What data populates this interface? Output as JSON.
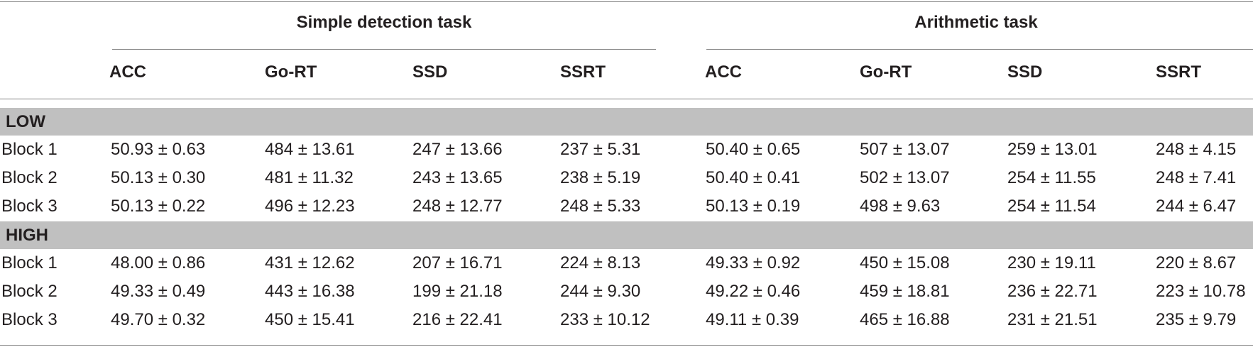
{
  "groups": [
    {
      "title": "Simple detection task",
      "columns": [
        "ACC",
        "Go-RT",
        "SSD",
        "SSRT"
      ]
    },
    {
      "title": "Arithmetic task",
      "columns": [
        "ACC",
        "Go-RT",
        "SSD",
        "SSRT"
      ]
    }
  ],
  "sections": [
    {
      "label": "LOW",
      "rows": [
        {
          "label": "Block 1",
          "values": [
            "50.93 ± 0.63",
            "484 ± 13.61",
            "247 ± 13.66",
            "237 ± 5.31",
            "50.40 ± 0.65",
            "507 ± 13.07",
            "259 ± 13.01",
            "248 ± 4.15"
          ]
        },
        {
          "label": "Block 2",
          "values": [
            "50.13 ± 0.30",
            "481 ± 11.32",
            "243 ± 13.65",
            "238 ± 5.19",
            "50.40 ± 0.41",
            "502 ± 13.07",
            "254 ± 11.55",
            "248 ± 7.41"
          ]
        },
        {
          "label": "Block 3",
          "values": [
            "50.13 ± 0.22",
            "496 ± 12.23",
            "248 ± 12.77",
            "248 ± 5.33",
            "50.13 ± 0.19",
            "498 ± 9.63",
            "254 ± 11.54",
            "244 ± 6.47"
          ]
        }
      ]
    },
    {
      "label": "HIGH",
      "rows": [
        {
          "label": "Block 1",
          "values": [
            "48.00 ± 0.86",
            "431 ± 12.62",
            "207 ± 16.71",
            "224 ± 8.13",
            "49.33 ± 0.92",
            "450 ± 15.08",
            "230 ± 19.11",
            "220 ± 8.67"
          ]
        },
        {
          "label": "Block 2",
          "values": [
            "49.33 ± 0.49",
            "443 ± 16.38",
            "199 ± 21.18",
            "244 ± 9.30",
            "49.22 ± 0.46",
            "459 ± 18.81",
            "236 ± 22.71",
            "223 ± 10.78"
          ]
        },
        {
          "label": "Block 3",
          "values": [
            "49.70 ± 0.32",
            "450 ± 15.41",
            "216 ± 22.41",
            "233 ± 10.12",
            "49.11 ± 0.39",
            "465 ± 16.88",
            "231 ± 21.51",
            "235 ± 9.79"
          ]
        }
      ]
    }
  ]
}
